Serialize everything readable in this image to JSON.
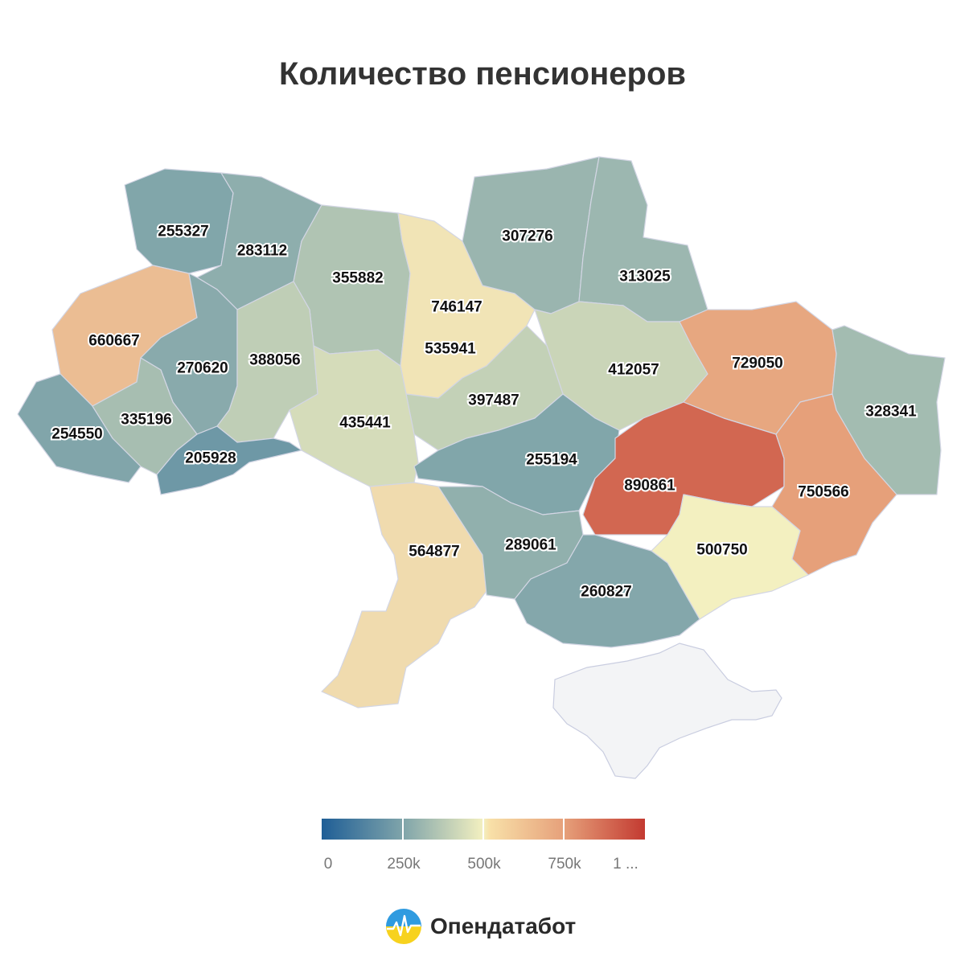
{
  "title": "Количество пенсионеров",
  "legend": {
    "ticks": [
      "0",
      "250k",
      "500k",
      "750k",
      "1 ..."
    ],
    "min": 0,
    "max": 1000000,
    "colors": [
      "#1f5e96",
      "#7fa4aa",
      "#f3f0c0",
      "#e6a07a",
      "#c33a31"
    ]
  },
  "regions": [
    {
      "value": "255327"
    },
    {
      "value": "283112"
    },
    {
      "value": "355882"
    },
    {
      "value": "746147"
    },
    {
      "value": "535941"
    },
    {
      "value": "307276"
    },
    {
      "value": "313025"
    },
    {
      "value": "660667"
    },
    {
      "value": "270620"
    },
    {
      "value": "388056"
    },
    {
      "value": "412057"
    },
    {
      "value": "729050"
    },
    {
      "value": "328341"
    },
    {
      "value": "254550"
    },
    {
      "value": "335196"
    },
    {
      "value": "397487"
    },
    {
      "value": "435441"
    },
    {
      "value": "205928"
    },
    {
      "value": "255194"
    },
    {
      "value": "890861"
    },
    {
      "value": "750566"
    },
    {
      "value": "564877"
    },
    {
      "value": "289061"
    },
    {
      "value": "500750"
    },
    {
      "value": "260827"
    }
  ],
  "brand": {
    "name": "Опендатабот",
    "logo_icon": "opendatabot-logo-icon"
  }
}
